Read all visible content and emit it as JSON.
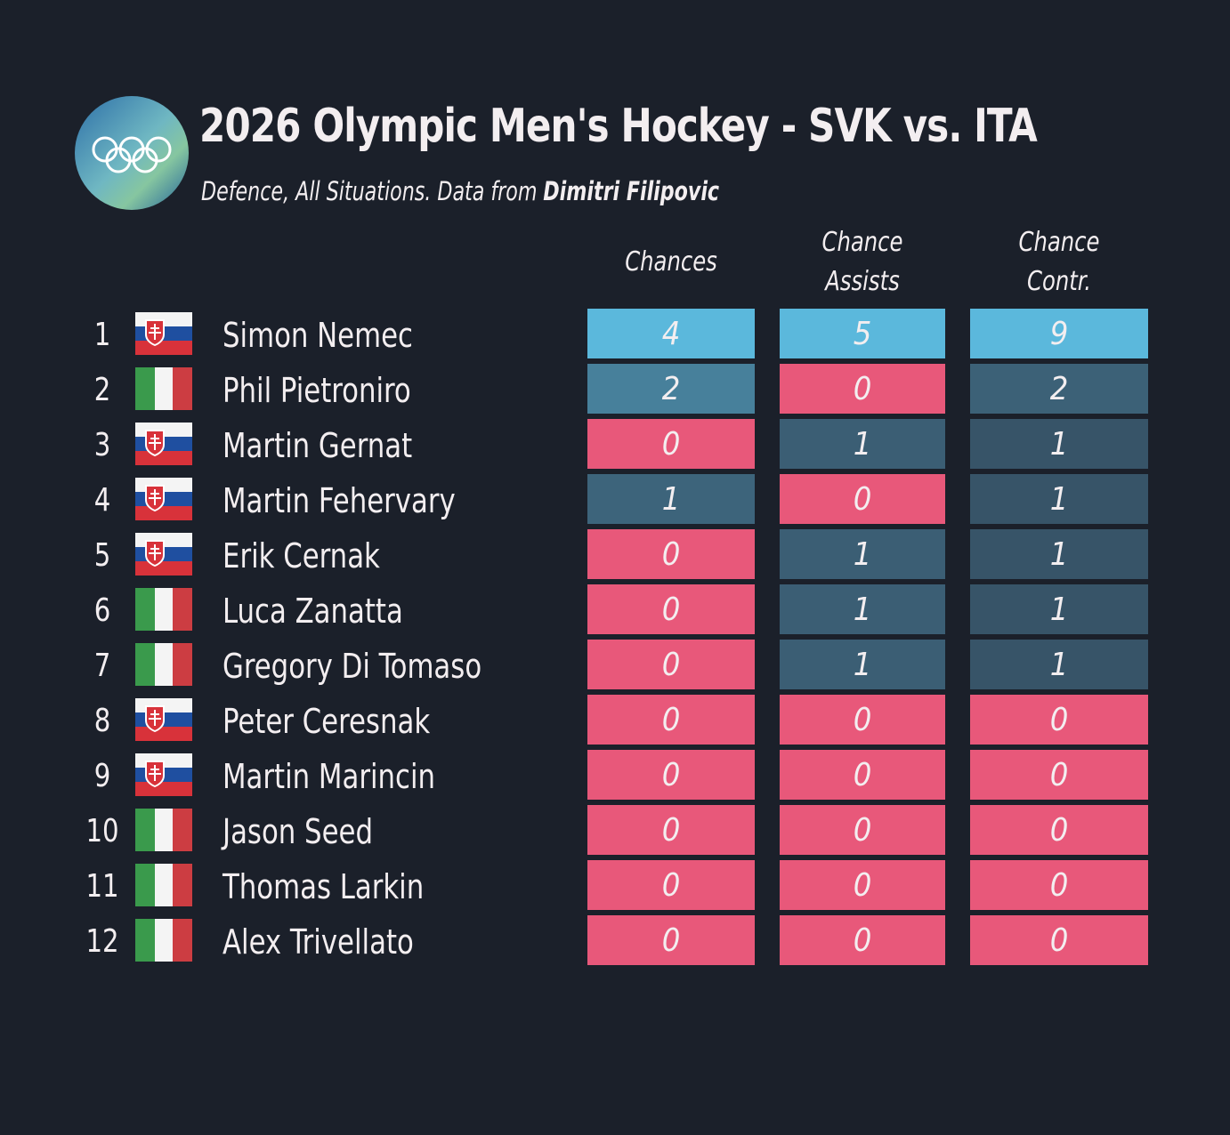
{
  "header": {
    "title": "2026 Olympic Men's Hockey - SVK vs. ITA",
    "subtitle": "Defence, All Situations. Data from",
    "source": "Dimitri Filipovic"
  },
  "table": {
    "columns": [
      "Chances",
      "Chance Assists",
      "Chance Contr."
    ],
    "rows": [
      {
        "rank": 1,
        "flag": "SVK",
        "name": "Simon Nemec",
        "values": [
          4,
          5,
          9
        ]
      },
      {
        "rank": 2,
        "flag": "ITA",
        "name": "Phil Pietroniro",
        "values": [
          2,
          0,
          2
        ]
      },
      {
        "rank": 3,
        "flag": "SVK",
        "name": "Martin Gernat",
        "values": [
          0,
          1,
          1
        ]
      },
      {
        "rank": 4,
        "flag": "SVK",
        "name": "Martin Fehervary",
        "values": [
          1,
          0,
          1
        ]
      },
      {
        "rank": 5,
        "flag": "SVK",
        "name": "Erik Cernak",
        "values": [
          0,
          1,
          1
        ]
      },
      {
        "rank": 6,
        "flag": "ITA",
        "name": "Luca Zanatta",
        "values": [
          0,
          1,
          1
        ]
      },
      {
        "rank": 7,
        "flag": "ITA",
        "name": "Gregory Di Tomaso",
        "values": [
          0,
          1,
          1
        ]
      },
      {
        "rank": 8,
        "flag": "SVK",
        "name": "Peter Ceresnak",
        "values": [
          0,
          0,
          0
        ]
      },
      {
        "rank": 9,
        "flag": "SVK",
        "name": "Martin Marincin",
        "values": [
          0,
          0,
          0
        ]
      },
      {
        "rank": 10,
        "flag": "ITA",
        "name": "Jason Seed",
        "values": [
          0,
          0,
          0
        ]
      },
      {
        "rank": 11,
        "flag": "ITA",
        "name": "Thomas Larkin",
        "values": [
          0,
          0,
          0
        ]
      },
      {
        "rank": 12,
        "flag": "ITA",
        "name": "Alex Trivellato",
        "values": [
          0,
          0,
          0
        ]
      }
    ]
  }
}
